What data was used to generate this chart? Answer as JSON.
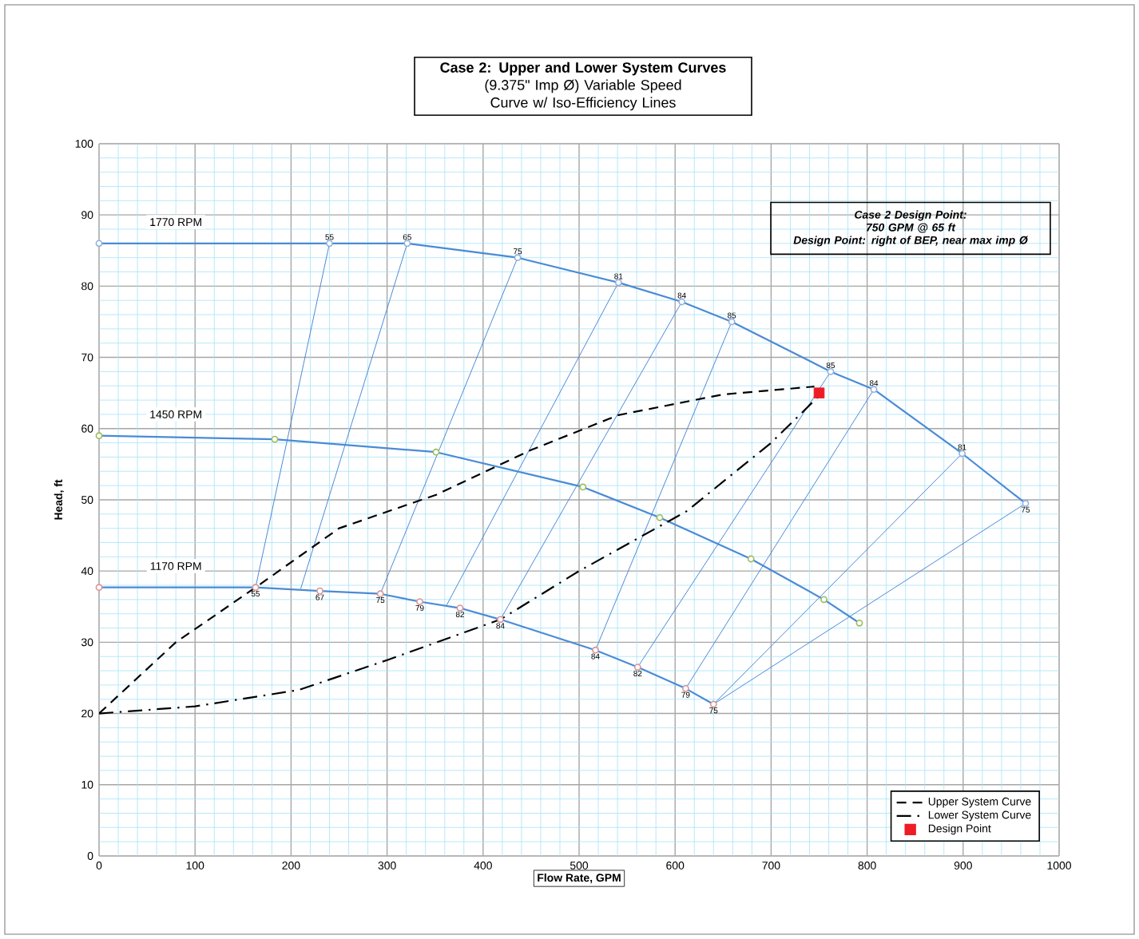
{
  "chart_data": {
    "type": "line",
    "title": "Case 2: Upper and Lower System Curves",
    "subtitle": "(9.375\" Imp Ø) Variable Speed Curve w/ Iso-Efficiency Lines",
    "xlabel": "Flow Rate, GPM",
    "ylabel": "Head, ft",
    "annotations": [
      "Case 2 Design Point:",
      "750 GPM @ 65 ft",
      "Design Point: right of BEP, near max  imp Ø",
      {
        "text": "55",
        "x": 240,
        "y": 86
      },
      {
        "text": "65",
        "x": 321,
        "y": 86
      },
      {
        "text": "75",
        "x": 436,
        "y": 84
      },
      {
        "text": "81",
        "x": 541,
        "y": 80.5
      },
      {
        "text": "84",
        "x": 607,
        "y": 77.8
      },
      {
        "text": "85",
        "x": 659,
        "y": 75
      },
      {
        "text": "85",
        "x": 762,
        "y": 68
      },
      {
        "text": "84",
        "x": 807,
        "y": 65.5
      },
      {
        "text": "81",
        "x": 899,
        "y": 56.5
      },
      {
        "text": "75",
        "x": 965,
        "y": 49.5
      },
      {
        "text": "55",
        "x": 163,
        "y": 37.7
      },
      {
        "text": "67",
        "x": 230,
        "y": 37.2
      },
      {
        "text": "75",
        "x": 293,
        "y": 36.8
      },
      {
        "text": "79",
        "x": 334,
        "y": 35.7
      },
      {
        "text": "82",
        "x": 376,
        "y": 34.8
      },
      {
        "text": "84",
        "x": 418,
        "y": 33.2
      },
      {
        "text": "84",
        "x": 517,
        "y": 28.9
      },
      {
        "text": "82",
        "x": 561,
        "y": 26.5
      },
      {
        "text": "79",
        "x": 611,
        "y": 23.5
      },
      {
        "text": "75",
        "x": 640,
        "y": 21.3
      }
    ],
    "xlim": [
      0,
      1000
    ],
    "ylim": [
      0,
      100
    ],
    "xticks": [
      0,
      {
        "value": 20,
        "label": null
      },
      {
        "value": 40,
        "label": null
      },
      {
        "value": 60,
        "label": null
      },
      {
        "value": 80,
        "label": null
      },
      100,
      {
        "value": 120,
        "label": null
      },
      {
        "value": 140,
        "label": null
      },
      {
        "value": 160,
        "label": null
      },
      {
        "value": 180,
        "label": null
      },
      200,
      {
        "value": 220,
        "label": null
      },
      {
        "value": 240,
        "label": null
      },
      {
        "value": 260,
        "label": null
      },
      {
        "value": 280,
        "label": null
      },
      300,
      {
        "value": 320,
        "label": null
      },
      {
        "value": 340,
        "label": null
      },
      {
        "value": 360,
        "label": null
      },
      {
        "value": 380,
        "label": null
      },
      400,
      {
        "value": 420,
        "label": null
      },
      {
        "value": 440,
        "label": null
      },
      {
        "value": 460,
        "label": null
      },
      {
        "value": 480,
        "label": null
      },
      500,
      {
        "value": 520,
        "label": null
      },
      {
        "value": 540,
        "label": null
      },
      {
        "value": 560,
        "label": null
      },
      {
        "value": 580,
        "label": null
      },
      600,
      {
        "value": 620,
        "label": null
      },
      {
        "value": 640,
        "label": null
      },
      {
        "value": 660,
        "label": null
      },
      {
        "value": 680,
        "label": null
      },
      700,
      {
        "value": 720,
        "label": null
      },
      {
        "value": 740,
        "label": null
      },
      {
        "value": 760,
        "label": null
      },
      {
        "value": 780,
        "label": null
      },
      800,
      {
        "value": 820,
        "label": null
      },
      {
        "value": 840,
        "label": null
      },
      {
        "value": 860,
        "label": null
      },
      {
        "value": 880,
        "label": null
      },
      900,
      {
        "value": 920,
        "label": null
      },
      {
        "value": 940,
        "label": null
      },
      {
        "value": 960,
        "label": null
      },
      {
        "value": 980,
        "label": null
      },
      1000
    ],
    "yticks": [
      0,
      {
        "value": 2,
        "label": null
      },
      {
        "value": 4,
        "label": null
      },
      {
        "value": 6,
        "label": null
      },
      {
        "value": 8,
        "label": null
      },
      10,
      {
        "value": 12,
        "label": null
      },
      {
        "value": 14,
        "label": null
      },
      {
        "value": 16,
        "label": null
      },
      {
        "value": 18,
        "label": null
      },
      20,
      {
        "value": 22,
        "label": null
      },
      {
        "value": 24,
        "label": null
      },
      {
        "value": 26,
        "label": null
      },
      {
        "value": 28,
        "label": null
      },
      30,
      {
        "value": 32,
        "label": null
      },
      {
        "value": 34,
        "label": null
      },
      {
        "value": 36,
        "label": null
      },
      {
        "value": 38,
        "label": null
      },
      40,
      {
        "value": 42,
        "label": null
      },
      {
        "value": 44,
        "label": null
      },
      {
        "value": 46,
        "label": null
      },
      {
        "value": 48,
        "label": null
      },
      50,
      {
        "value": 52,
        "label": null
      },
      {
        "value": 54,
        "label": null
      },
      {
        "value": 56,
        "label": null
      },
      {
        "value": 58,
        "label": null
      },
      60,
      {
        "value": 62,
        "label": null
      },
      {
        "value": 64,
        "label": null
      },
      {
        "value": 66,
        "label": null
      },
      {
        "value": 68,
        "label": null
      },
      70,
      {
        "value": 72,
        "label": null
      },
      {
        "value": 74,
        "label": null
      },
      {
        "value": 76,
        "label": null
      },
      {
        "value": 78,
        "label": null
      },
      80,
      {
        "value": 82,
        "label": null
      },
      {
        "value": 84,
        "label": null
      },
      {
        "value": 86,
        "label": null
      },
      {
        "value": 88,
        "label": null
      },
      90,
      {
        "value": 92,
        "label": null
      },
      {
        "value": 94,
        "label": null
      },
      {
        "value": 96,
        "label": null
      },
      {
        "value": 98,
        "label": null
      },
      100
    ],
    "grid": true,
    "legend": "bottom right",
    "series": [
      {
        "name": "1770 RPM",
        "color": "#4a8bd6",
        "marker": "circle",
        "x": [
          0,
          240,
          321,
          436,
          541,
          607,
          659,
          762,
          807,
          899,
          965
        ],
        "values": [
          86,
          86,
          86,
          84,
          80.5,
          77.8,
          75,
          68,
          65.5,
          56.5,
          49.5
        ],
        "colors": [
          "#8fb0e0",
          "#8fb0e0",
          "#8fb0e0",
          "#8fb0e0",
          "#8fb0e0",
          "#8fb0e0",
          "#8fb0e0",
          "#8fb0e0",
          "#8fb0e0",
          "#8fb0e0",
          "#8fb0e0"
        ]
      },
      {
        "name": "1450 RPM",
        "color": "#4a8bd6",
        "marker": "circle",
        "x": [
          0,
          183,
          351,
          504,
          584,
          679,
          755,
          792
        ],
        "values": [
          59,
          58.5,
          56.7,
          51.8,
          47.5,
          41.7,
          36,
          32.7
        ],
        "colors": [
          "#9bbb59",
          "#9bbb59",
          "#9bbb59",
          "#9bbb59",
          "#9bbb59",
          "#9bbb59",
          "#9bbb59",
          "#9bbb59"
        ]
      },
      {
        "name": "1170 RPM",
        "color": "#4a8bd6",
        "marker": "circle",
        "x": [
          0,
          163,
          230,
          293,
          334,
          376,
          418,
          517,
          561,
          611,
          640
        ],
        "values": [
          37.7,
          37.7,
          37.2,
          36.8,
          35.7,
          34.8,
          33.2,
          28.9,
          26.5,
          23.5,
          21.3
        ],
        "colors": [
          "#d99594",
          "#d99594",
          "#d99594",
          "#d99594",
          "#d99594",
          "#d99594",
          "#d99594",
          "#d99594",
          "#d99594",
          "#d99594",
          "#d99594"
        ]
      },
      {
        "color": "#4a8bd6",
        "x": [
          240,
          163
        ],
        "values": [
          86,
          37.7
        ]
      },
      {
        "color": "#4a8bd6",
        "x": [
          321,
          210
        ],
        "values": [
          86,
          37.5
        ]
      },
      {
        "color": "#4a8bd6",
        "x": [
          436,
          293
        ],
        "values": [
          84,
          36.8
        ]
      },
      {
        "color": "#4a8bd6",
        "x": [
          541,
          362
        ],
        "values": [
          80.5,
          35.2
        ]
      },
      {
        "color": "#4a8bd6",
        "x": [
          607,
          418
        ],
        "values": [
          77.8,
          33.2
        ]
      },
      {
        "color": "#4a8bd6",
        "x": [
          659,
          517
        ],
        "values": [
          75,
          28.9
        ]
      },
      {
        "color": "#4a8bd6",
        "x": [
          762,
          561
        ],
        "values": [
          68,
          26.5
        ]
      },
      {
        "color": "#4a8bd6",
        "x": [
          807,
          611
        ],
        "values": [
          65.5,
          23.5
        ]
      },
      {
        "color": "#4a8bd6",
        "x": [
          899,
          640
        ],
        "values": [
          56.5,
          21.3
        ]
      },
      {
        "color": "#4a8bd6",
        "x": [
          965,
          640
        ],
        "values": [
          49.5,
          21.3
        ]
      },
      {
        "name": "Upper System Curve",
        "color": "#000000",
        "line_style": "dashed",
        "x": [
          0,
          80,
          163,
          250,
          351,
          450,
          541,
          650,
          745
        ],
        "values": [
          20,
          30,
          37.7,
          46,
          50.7,
          57,
          61.9,
          64.8,
          65.9
        ]
      },
      {
        "name": "Lower System Curve",
        "color": "#000000",
        "line_style": "dashdot",
        "x": [
          0,
          100,
          208,
          300,
          418,
          500,
          612,
          700,
          750
        ],
        "values": [
          20,
          21,
          23.3,
          27.5,
          33.2,
          40,
          48.4,
          58,
          64.6
        ]
      },
      {
        "name": "Design Point",
        "type": "scatter",
        "color": "#ee1c25",
        "marker": "square",
        "x": [
          750
        ],
        "values": [
          65
        ]
      }
    ]
  }
}
